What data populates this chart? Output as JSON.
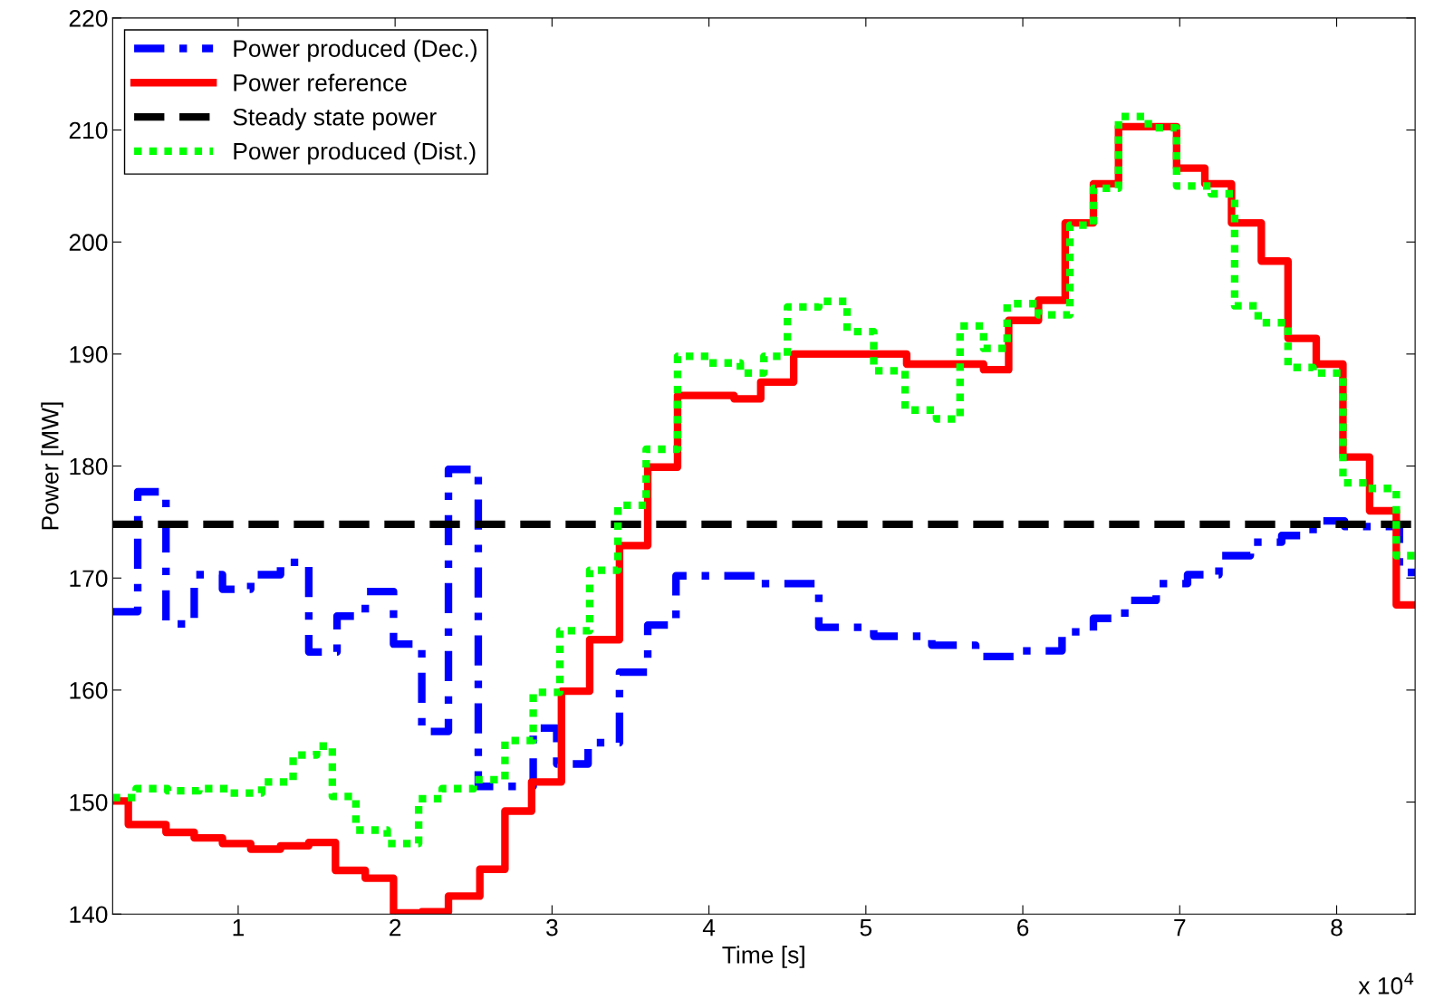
{
  "chart_data": {
    "type": "step",
    "xlabel": "Time [s]",
    "ylabel": "Power [MW]",
    "xlim": [
      0.2,
      8.5
    ],
    "ylim": [
      140,
      220
    ],
    "xticks": [
      1,
      2,
      3,
      4,
      5,
      6,
      7,
      8
    ],
    "yticks": [
      140,
      150,
      160,
      170,
      180,
      190,
      200,
      210,
      220
    ],
    "grid": false,
    "legend": "top left",
    "annotations": [
      "x 10$^{4}$"
    ],
    "series": [
      {
        "name": "Power produced (Dec.)",
        "color": "#0000ff",
        "line_style": "dashdot",
        "x": [
          0.2,
          0.36,
          0.54,
          0.72,
          0.9,
          1.08,
          1.27,
          1.45,
          1.63,
          1.81,
          1.99,
          2.17,
          2.34,
          2.53,
          2.88,
          3.03,
          3.23,
          3.43,
          3.61,
          3.79,
          4.33,
          4.7,
          5.05,
          5.42,
          5.7,
          6.0,
          6.25,
          6.45,
          6.65,
          6.85,
          7.05,
          7.25,
          7.45,
          7.65,
          7.85,
          8.05,
          8.4,
          8.5
        ],
        "values": [
          167.0,
          177.7,
          165.9,
          170.3,
          169.0,
          170.3,
          171.4,
          163.4,
          166.6,
          168.8,
          164.1,
          156.3,
          179.7,
          151.4,
          156.6,
          153.4,
          155.3,
          161.6,
          165.8,
          170.2,
          169.5,
          165.6,
          164.8,
          164.0,
          163.0,
          163.5,
          165.2,
          166.4,
          168.0,
          169.5,
          170.3,
          172.0,
          173.2,
          173.8,
          175.1,
          174.6,
          170.5,
          170.5
        ]
      },
      {
        "name": "Power reference",
        "color": "#ff0000",
        "line_style": "solid",
        "x": [
          0.2,
          0.3,
          0.54,
          0.72,
          0.9,
          1.08,
          1.27,
          1.45,
          1.62,
          1.81,
          1.99,
          2.17,
          2.34,
          2.54,
          2.7,
          2.87,
          3.06,
          3.24,
          3.43,
          3.61,
          3.8,
          4.16,
          4.33,
          4.54,
          4.88,
          5.26,
          5.75,
          5.91,
          6.1,
          6.27,
          6.45,
          6.61,
          6.98,
          7.16,
          7.33,
          7.52,
          7.69,
          7.87,
          8.04,
          8.21,
          8.38,
          8.5
        ],
        "values": [
          150.1,
          148.0,
          147.3,
          146.8,
          146.3,
          145.8,
          146.1,
          146.4,
          143.9,
          143.2,
          140.1,
          140.2,
          141.6,
          144.0,
          149.2,
          151.8,
          159.9,
          164.5,
          172.9,
          179.9,
          186.3,
          186.0,
          187.5,
          190.0,
          190.0,
          189.1,
          188.6,
          193.0,
          194.8,
          201.7,
          205.2,
          210.3,
          206.6,
          205.2,
          201.7,
          198.3,
          191.4,
          189.1,
          180.8,
          176.0,
          167.6,
          167.6
        ]
      },
      {
        "name": "Steady state power",
        "color": "#000000",
        "line_style": "dashed",
        "type": "line",
        "x": [
          0.2,
          8.5
        ],
        "values": [
          174.8,
          174.8
        ]
      },
      {
        "name": "Power produced (Dist.)",
        "color": "#00ff00",
        "line_style": "dotted",
        "x": [
          0.2,
          0.35,
          0.55,
          0.75,
          0.95,
          1.15,
          1.35,
          1.5,
          1.6,
          1.75,
          1.95,
          2.15,
          2.3,
          2.5,
          2.7,
          2.88,
          3.05,
          3.24,
          3.42,
          3.6,
          3.8,
          4.0,
          4.2,
          4.35,
          4.5,
          4.7,
          4.88,
          5.05,
          5.25,
          5.45,
          5.6,
          5.75,
          5.9,
          6.1,
          6.3,
          6.45,
          6.61,
          6.8,
          6.98,
          7.2,
          7.35,
          7.5,
          7.69,
          7.85,
          8.04,
          8.2,
          8.38,
          8.5
        ],
        "values": [
          150.4,
          151.2,
          151.0,
          151.2,
          150.8,
          151.8,
          154.2,
          155.0,
          150.5,
          147.5,
          146.3,
          150.3,
          151.2,
          152.0,
          155.5,
          159.8,
          165.3,
          170.7,
          176.5,
          181.5,
          189.8,
          189.2,
          188.3,
          189.8,
          194.2,
          194.7,
          192.0,
          188.5,
          185.0,
          184.2,
          192.5,
          190.5,
          194.5,
          193.5,
          201.5,
          204.8,
          211.2,
          210.2,
          205.0,
          204.3,
          194.3,
          192.8,
          188.8,
          188.3,
          178.5,
          178.0,
          172.0,
          172.0
        ]
      }
    ]
  }
}
